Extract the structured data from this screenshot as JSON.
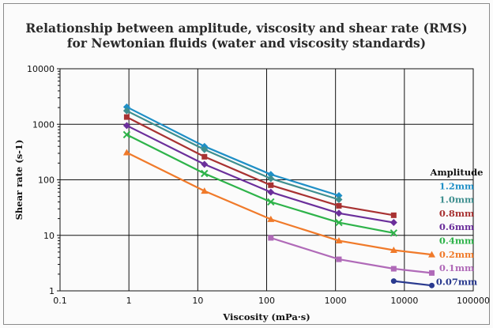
{
  "chart_data": {
    "type": "line",
    "title": "Relationship between amplitude, viscosity and shear rate (RMS)",
    "subtitle": "for Newtonian fluids (water and viscosity standards)",
    "xlabel": "Viscosity (mPa·s)",
    "ylabel": "Shear rate (s-1)",
    "x_scale": "log",
    "y_scale": "log",
    "xlim": [
      0.1,
      100000
    ],
    "ylim": [
      1,
      10000
    ],
    "x_ticks": [
      "0.1",
      "1",
      "10",
      "100",
      "1000",
      "10000",
      "100000"
    ],
    "y_ticks": [
      "1",
      "10",
      "100",
      "1000",
      "10000"
    ],
    "grid": true,
    "legend_title": "Amplitude",
    "legend_position": "right",
    "series": [
      {
        "name": "1.2mm",
        "color": "#1f8fc6",
        "marker": "diamond",
        "x": [
          0.93,
          12.5,
          115,
          1120
        ],
        "y": [
          2050,
          400,
          125,
          52
        ]
      },
      {
        "name": "1.0mm",
        "color": "#3f8f8f",
        "marker": "diamond",
        "x": [
          0.93,
          12.5,
          115,
          1120
        ],
        "y": [
          1750,
          350,
          105,
          44
        ]
      },
      {
        "name": "0.8mm",
        "color": "#a83232",
        "marker": "square",
        "x": [
          0.93,
          12.5,
          115,
          1120,
          7000
        ],
        "y": [
          1350,
          260,
          80,
          34,
          23
        ]
      },
      {
        "name": "0.6mm",
        "color": "#6b2f9b",
        "marker": "diamond",
        "x": [
          0.93,
          12.5,
          115,
          1120,
          7000
        ],
        "y": [
          950,
          190,
          60,
          25,
          17
        ]
      },
      {
        "name": "0.4mm",
        "color": "#2eb34a",
        "marker": "x",
        "x": [
          0.93,
          12.5,
          115,
          1120,
          7000
        ],
        "y": [
          650,
          130,
          40,
          17,
          11
        ]
      },
      {
        "name": "0.2mm",
        "color": "#f07a2a",
        "marker": "triangle",
        "x": [
          0.93,
          12.5,
          115,
          1120,
          7000,
          25000
        ],
        "y": [
          310,
          63,
          19.5,
          8,
          5.4,
          4.5
        ]
      },
      {
        "name": "0.1mm",
        "color": "#b06ab8",
        "marker": "square",
        "x": [
          115,
          1120,
          7000,
          25000
        ],
        "y": [
          9,
          3.7,
          2.5,
          2.1
        ]
      },
      {
        "name": "0.07mm",
        "color": "#2a3a8f",
        "marker": "circle",
        "x": [
          7000,
          25000
        ],
        "y": [
          1.5,
          1.25
        ]
      }
    ]
  }
}
